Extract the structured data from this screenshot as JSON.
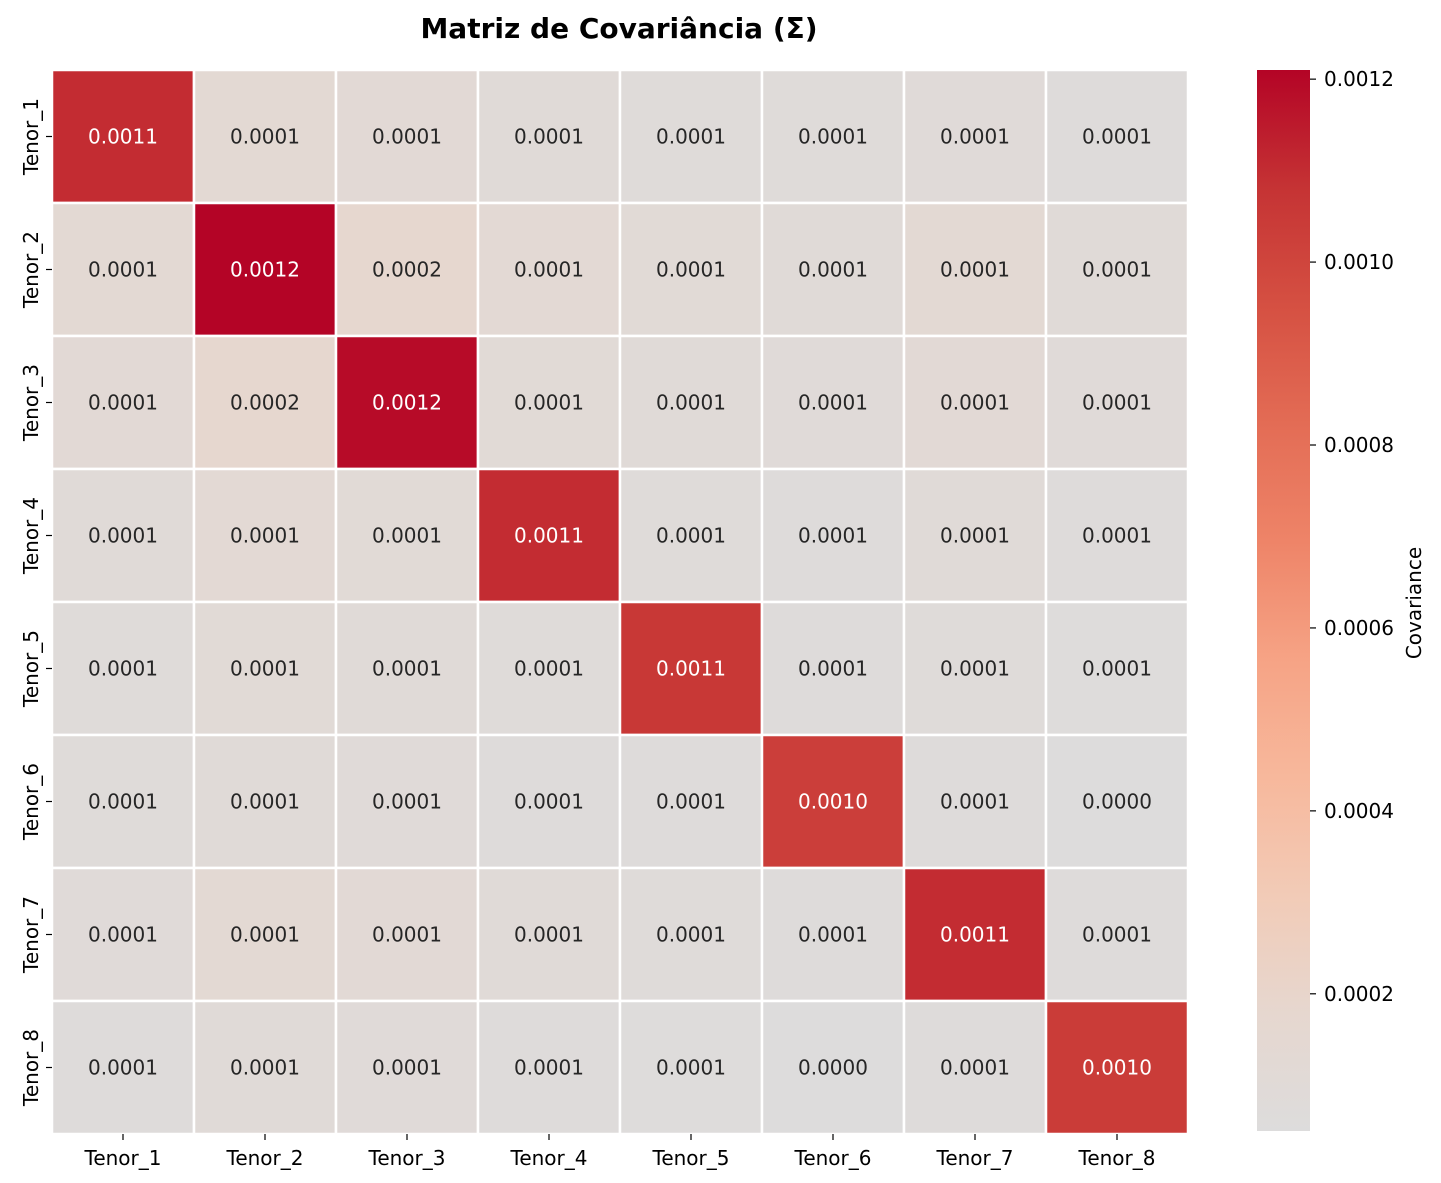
{
  "chart_data": {
    "type": "heatmap",
    "title": "Matriz de Covariância (Σ)",
    "x_labels": [
      "Tenor_1",
      "Tenor_2",
      "Tenor_3",
      "Tenor_4",
      "Tenor_5",
      "Tenor_6",
      "Tenor_7",
      "Tenor_8"
    ],
    "y_labels": [
      "Tenor_1",
      "Tenor_2",
      "Tenor_3",
      "Tenor_4",
      "Tenor_5",
      "Tenor_6",
      "Tenor_7",
      "Tenor_8"
    ],
    "values": [
      [
        0.0011,
        0.00014,
        0.00012,
        0.0001,
        8e-05,
        8e-05,
        9e-05,
        7e-05
      ],
      [
        0.00014,
        0.00121,
        0.00018,
        0.00013,
        0.00011,
        0.0001,
        0.00014,
        0.0001
      ],
      [
        0.00012,
        0.00018,
        0.00119,
        0.00011,
        0.0001,
        9e-05,
        0.00012,
        9e-05
      ],
      [
        0.0001,
        0.00013,
        0.00011,
        0.0011,
        8e-05,
        7e-05,
        0.0001,
        7e-05
      ],
      [
        8e-05,
        0.00011,
        0.0001,
        8e-05,
        0.00106,
        7e-05,
        8e-05,
        6e-05
      ],
      [
        8e-05,
        0.0001,
        9e-05,
        7e-05,
        7e-05,
        0.00103,
        7e-05,
        5e-05
      ],
      [
        9e-05,
        0.00014,
        0.00012,
        0.0001,
        8e-05,
        7e-05,
        0.0011,
        7e-05
      ],
      [
        7e-05,
        0.0001,
        9e-05,
        7e-05,
        6e-05,
        5e-05,
        7e-05,
        0.00104
      ]
    ],
    "display_labels": [
      [
        "0.0011",
        "0.0001",
        "0.0001",
        "0.0001",
        "0.0001",
        "0.0001",
        "0.0001",
        "0.0001"
      ],
      [
        "0.0001",
        "0.0012",
        "0.0002",
        "0.0001",
        "0.0001",
        "0.0001",
        "0.0001",
        "0.0001"
      ],
      [
        "0.0001",
        "0.0002",
        "0.0012",
        "0.0001",
        "0.0001",
        "0.0001",
        "0.0001",
        "0.0001"
      ],
      [
        "0.0001",
        "0.0001",
        "0.0001",
        "0.0011",
        "0.0001",
        "0.0001",
        "0.0001",
        "0.0001"
      ],
      [
        "0.0001",
        "0.0001",
        "0.0001",
        "0.0001",
        "0.0011",
        "0.0001",
        "0.0001",
        "0.0001"
      ],
      [
        "0.0001",
        "0.0001",
        "0.0001",
        "0.0001",
        "0.0001",
        "0.0010",
        "0.0001",
        "0.0000"
      ],
      [
        "0.0001",
        "0.0001",
        "0.0001",
        "0.0001",
        "0.0001",
        "0.0001",
        "0.0011",
        "0.0001"
      ],
      [
        "0.0001",
        "0.0001",
        "0.0001",
        "0.0001",
        "0.0001",
        "0.0000",
        "0.0001",
        "0.0010"
      ]
    ],
    "colorbar": {
      "label": "Covariance",
      "range": [
        5e-05,
        0.00121
      ],
      "ticks": [
        0.0002,
        0.0004,
        0.0006,
        0.0008,
        0.001,
        0.0012
      ],
      "tick_labels": [
        "0.0002",
        "0.0004",
        "0.0006",
        "0.0008",
        "0.0010",
        "0.0012"
      ],
      "colormap": "coolwarm (upper half)",
      "colors": [
        "#dddcdc",
        "#e6d7cf",
        "#f2cbb7",
        "#f7b89c",
        "#f6a385",
        "#ee8468",
        "#e36c55",
        "#d55042",
        "#c53334",
        "#b40426"
      ]
    },
    "grid_line_color": "#ffffff",
    "label_colors": {
      "dark": "#262626",
      "light": "#ffffff"
    }
  }
}
